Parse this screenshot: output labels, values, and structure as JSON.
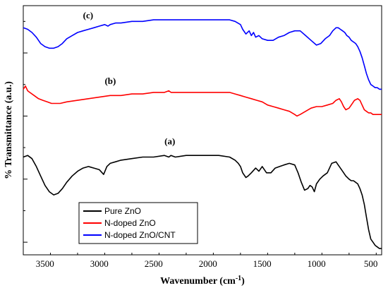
{
  "chart_data": {
    "type": "line",
    "xlabel": "Wavenumber (cm",
    "xlabel_sup": "-1",
    "xlabel_tail": ")",
    "ylabel": "% Transmittance (a.u.)",
    "xlim": [
      3700,
      400
    ],
    "x_reversed": true,
    "x_ticks": [
      3500,
      3000,
      2500,
      2000,
      1500,
      1000,
      500
    ],
    "grid": false,
    "legend_position": "bottom-left",
    "annotations": [
      "(c)",
      "(b)",
      "(a)"
    ],
    "series": [
      {
        "name": "Pure ZnO",
        "color": "#000000",
        "label": "(a)",
        "x": [
          3700,
          3660,
          3620,
          3580,
          3540,
          3500,
          3460,
          3420,
          3380,
          3340,
          3300,
          3250,
          3200,
          3150,
          3100,
          3050,
          3000,
          2960,
          2930,
          2900,
          2850,
          2800,
          2700,
          2600,
          2500,
          2400,
          2360,
          2340,
          2300,
          2200,
          2100,
          2000,
          1900,
          1800,
          1750,
          1720,
          1700,
          1680,
          1650,
          1630,
          1600,
          1560,
          1530,
          1500,
          1460,
          1420,
          1380,
          1340,
          1300,
          1250,
          1200,
          1170,
          1140,
          1110,
          1080,
          1060,
          1040,
          1020,
          1000,
          970,
          940,
          900,
          860,
          820,
          800,
          760,
          730,
          700,
          680,
          660,
          640,
          620,
          600,
          580,
          560,
          540,
          520,
          500,
          480,
          460,
          440,
          420,
          400
        ],
        "y": [
          54,
          55,
          53,
          48,
          42,
          36,
          32,
          30,
          31,
          34,
          38,
          42,
          45,
          47,
          48,
          47,
          46,
          43,
          48,
          50,
          51,
          52,
          53,
          54,
          54,
          55,
          54,
          55,
          54,
          55,
          55,
          55,
          55,
          54,
          52,
          50,
          48,
          44,
          41,
          42,
          44,
          47,
          45,
          48,
          44,
          44,
          47,
          48,
          49,
          50,
          49,
          44,
          38,
          33,
          34,
          36,
          35,
          32,
          37,
          40,
          42,
          44,
          50,
          51,
          49,
          45,
          42,
          40,
          39,
          39,
          38,
          37,
          34,
          30,
          24,
          16,
          8,
          2,
          0,
          -2,
          -3,
          -4,
          -4
        ]
      },
      {
        "name": "N-doped ZnO",
        "color": "#ff0000",
        "label": "(b)",
        "x": [
          3700,
          3680,
          3660,
          3640,
          3600,
          3560,
          3520,
          3480,
          3440,
          3400,
          3360,
          3300,
          3200,
          3100,
          3000,
          2900,
          2800,
          2700,
          2600,
          2500,
          2400,
          2360,
          2340,
          2300,
          2200,
          2100,
          2000,
          1900,
          1800,
          1750,
          1700,
          1650,
          1600,
          1550,
          1500,
          1450,
          1400,
          1350,
          1300,
          1250,
          1200,
          1180,
          1150,
          1100,
          1050,
          1000,
          950,
          900,
          850,
          820,
          790,
          770,
          750,
          730,
          700,
          680,
          650,
          620,
          600,
          580,
          560,
          540,
          520,
          500,
          480,
          450,
          400
        ],
        "y": [
          97,
          99,
          96,
          95,
          93,
          91,
          90,
          89,
          88,
          88,
          88,
          89,
          90,
          91,
          92,
          93,
          93,
          94,
          94,
          95,
          95,
          96,
          95,
          95,
          95,
          95,
          95,
          95,
          95,
          94,
          93,
          92,
          91,
          90,
          89,
          87,
          86,
          85,
          84,
          83,
          81,
          80,
          81,
          83,
          85,
          86,
          86,
          87,
          88,
          90,
          91,
          89,
          86,
          84,
          85,
          87,
          90,
          91,
          90,
          87,
          84,
          83,
          82,
          82,
          81,
          81,
          81
        ]
      },
      {
        "name": "N-doped ZnO/CNT",
        "color": "#0000ff",
        "label": "(c)",
        "x": [
          3700,
          3660,
          3620,
          3580,
          3540,
          3500,
          3460,
          3420,
          3380,
          3340,
          3300,
          3250,
          3200,
          3150,
          3100,
          3050,
          3000,
          2950,
          2920,
          2900,
          2850,
          2800,
          2700,
          2600,
          2500,
          2400,
          2350,
          2300,
          2200,
          2100,
          2000,
          1900,
          1800,
          1750,
          1700,
          1680,
          1650,
          1620,
          1600,
          1580,
          1560,
          1530,
          1500,
          1450,
          1400,
          1350,
          1300,
          1250,
          1200,
          1150,
          1100,
          1050,
          1000,
          960,
          920,
          880,
          850,
          820,
          800,
          780,
          760,
          740,
          720,
          700,
          680,
          660,
          640,
          620,
          600,
          580,
          560,
          540,
          520,
          500,
          480,
          460,
          440,
          420,
          400
        ],
        "y": [
          136,
          135,
          133,
          130,
          126,
          124,
          123,
          123,
          124,
          126,
          129,
          131,
          133,
          134,
          135,
          136,
          137,
          138,
          137,
          138,
          139,
          139,
          140,
          140,
          141,
          141,
          141,
          141,
          141,
          141,
          141,
          141,
          141,
          140,
          138,
          135,
          132,
          134,
          131,
          133,
          130,
          131,
          129,
          128,
          128,
          130,
          131,
          133,
          134,
          134,
          131,
          128,
          125,
          126,
          129,
          131,
          134,
          136,
          136,
          135,
          134,
          133,
          131,
          130,
          128,
          127,
          126,
          124,
          121,
          117,
          112,
          107,
          103,
          100,
          99,
          98,
          98,
          97,
          97
        ]
      }
    ]
  }
}
